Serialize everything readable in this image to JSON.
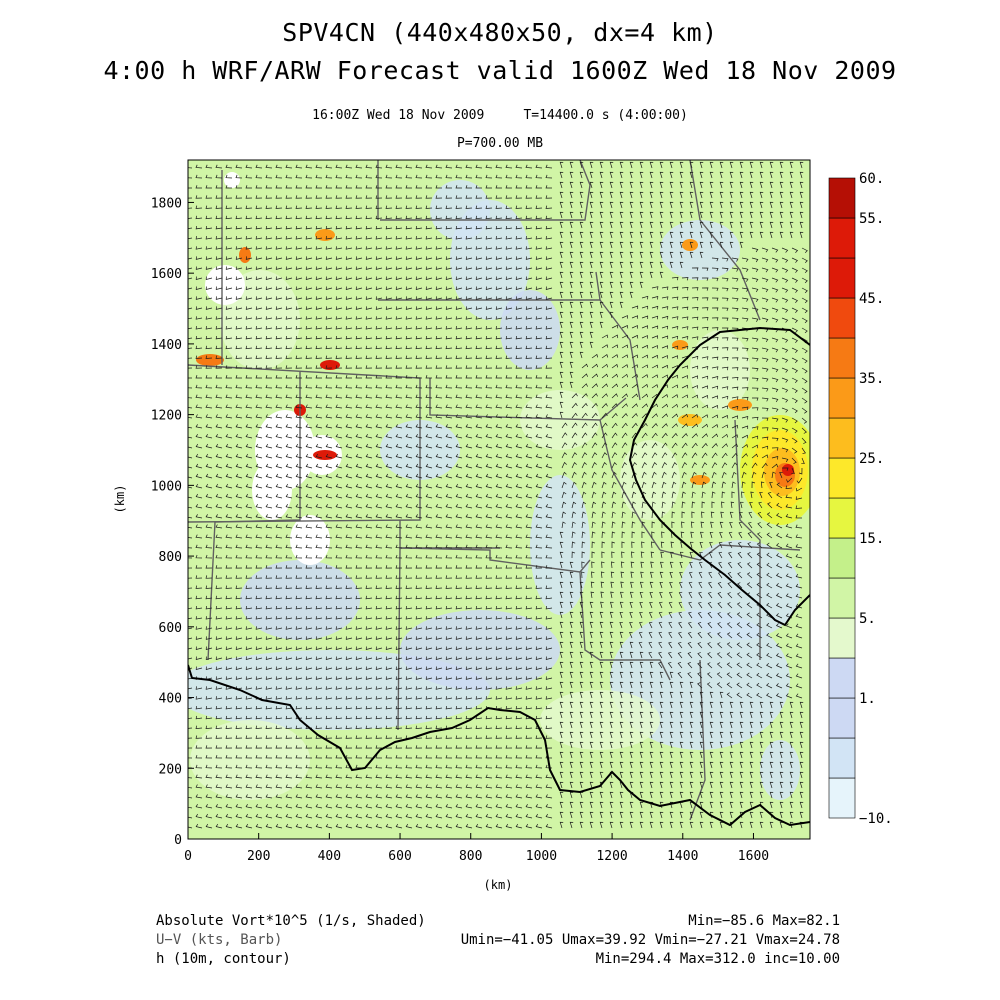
{
  "header": {
    "title_line1": "SPV4CN (440x480x50, dx=4 km)",
    "title_line2": "4:00 h WRF/ARW Forecast valid 1600Z Wed 18 Nov 2009",
    "valid_time": "16:00Z Wed 18 Nov 2009",
    "sim_time": "T=14400.0 s (4:00:00)",
    "level": "P=700.00 MB"
  },
  "colors": {
    "white": "#ffffff",
    "very_light_blue": "#e6f4fb",
    "light_blue": "#d2e4f5",
    "lavender_blue": "#cdd9f3",
    "pale_green": "#e4f9cd",
    "light_green": "#d1f5a6",
    "green": "#c4f08a",
    "yellow_green": "#e6f640",
    "yellow": "#fde82a",
    "gold": "#fdbd1e",
    "orange": "#fb9a18",
    "dark_orange": "#f67a14",
    "red_orange": "#f04a0e",
    "red": "#dd1a08",
    "dark_red": "#b50f05",
    "boundary": "#606060",
    "contour": "#000000"
  },
  "chart_data": {
    "type": "heatmap",
    "title": "",
    "xlabel": "(km)",
    "ylabel": "(km)",
    "xlim": [
      0,
      1760
    ],
    "ylim": [
      0,
      1920
    ],
    "xticks": [
      0,
      200,
      400,
      600,
      800,
      1000,
      1200,
      1400,
      1600
    ],
    "yticks": [
      0,
      200,
      400,
      600,
      800,
      1000,
      1200,
      1400,
      1600,
      1800
    ],
    "colorbar": {
      "labels": [
        "60.",
        "55.",
        "45.",
        "35.",
        "25.",
        "15.",
        "5.",
        "1.",
        "−10."
      ],
      "label_positions": [
        60,
        55,
        45,
        35,
        25,
        15,
        5,
        1,
        -10
      ],
      "bins": [
        -10,
        -5,
        0,
        1,
        2,
        5,
        10,
        15,
        20,
        25,
        30,
        35,
        40,
        45,
        50,
        55,
        60
      ]
    },
    "fields": [
      {
        "name": "Absolute Vort*10^5 (1/s, Shaded)",
        "stats": "Min=−85.6 Max=82.1"
      },
      {
        "name": "U−V (kts, Barb)",
        "stats": "Umin=−41.05 Umax=39.92 Vmin=−27.21 Vmax=24.78"
      },
      {
        "name": "h (10m, contour)",
        "stats": "Min=294.4 Max=312.0 inc=10.00"
      }
    ],
    "cyclone_center_km": [
      1700,
      1040
    ]
  }
}
